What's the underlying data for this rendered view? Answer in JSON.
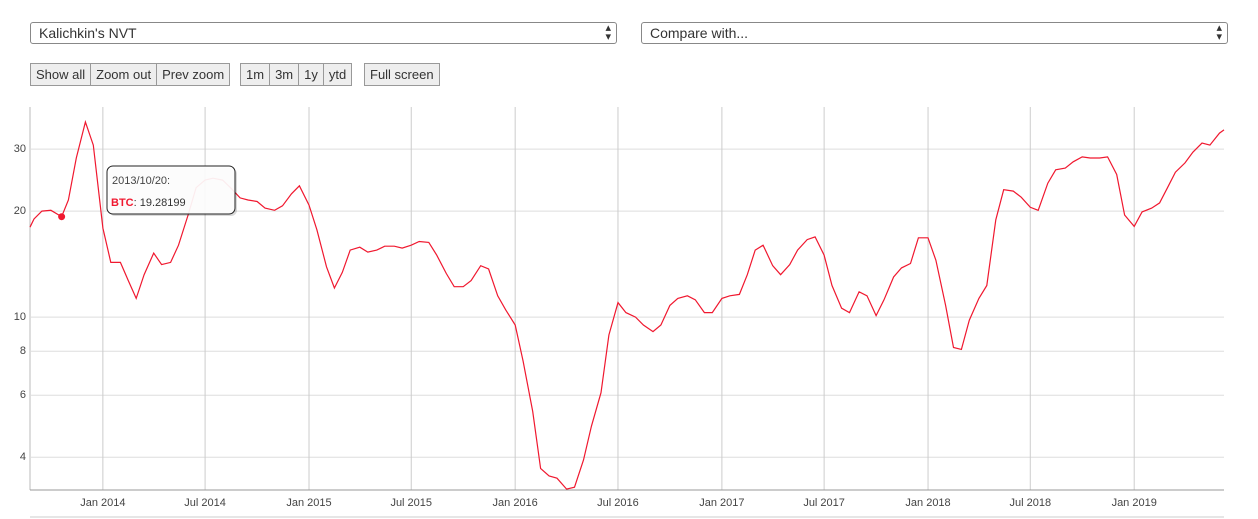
{
  "controls": {
    "metric": "Kalichkin's NVT",
    "compare": "Compare with...",
    "zoom_buttons": [
      "Show all",
      "Zoom out",
      "Prev zoom"
    ],
    "range_buttons": [
      "1m",
      "3m",
      "1y",
      "ytd"
    ],
    "fullscreen": "Full screen"
  },
  "chart_data": {
    "type": "line",
    "yscale": "log",
    "grid": true,
    "xlim": [
      "2013-08-25",
      "2019-06-09"
    ],
    "ylim": [
      3.23,
      39.5
    ],
    "yticks": [
      4,
      6,
      8,
      10,
      20,
      30
    ],
    "xticks": [
      {
        "value": "2014-01-01",
        "label": "Jan 2014"
      },
      {
        "value": "2014-07-01",
        "label": "Jul 2014"
      },
      {
        "value": "2015-01-01",
        "label": "Jan 2015"
      },
      {
        "value": "2015-07-01",
        "label": "Jul 2015"
      },
      {
        "value": "2016-01-01",
        "label": "Jan 2016"
      },
      {
        "value": "2016-07-01",
        "label": "Jul 2016"
      },
      {
        "value": "2017-01-01",
        "label": "Jan 2017"
      },
      {
        "value": "2017-07-01",
        "label": "Jul 2017"
      },
      {
        "value": "2018-01-01",
        "label": "Jan 2018"
      },
      {
        "value": "2018-07-01",
        "label": "Jul 2018"
      },
      {
        "value": "2019-01-01",
        "label": "Jan 2019"
      }
    ],
    "x": [
      "2013-08-25",
      "2013-09-01",
      "2013-09-15",
      "2013-10-01",
      "2013-10-15",
      "2013-10-20",
      "2013-11-01",
      "2013-11-15",
      "2013-12-01",
      "2013-12-15",
      "2014-01-01",
      "2014-01-15",
      "2014-02-01",
      "2014-02-15",
      "2014-03-01",
      "2014-03-15",
      "2014-04-01",
      "2014-04-15",
      "2014-05-01",
      "2014-05-15",
      "2014-06-01",
      "2014-06-15",
      "2014-07-01",
      "2014-07-15",
      "2014-08-01",
      "2014-08-15",
      "2014-09-01",
      "2014-09-15",
      "2014-10-01",
      "2014-10-15",
      "2014-11-01",
      "2014-11-15",
      "2014-12-01",
      "2014-12-15",
      "2015-01-01",
      "2015-01-15",
      "2015-02-01",
      "2015-02-15",
      "2015-03-01",
      "2015-03-15",
      "2015-04-01",
      "2015-04-15",
      "2015-05-01",
      "2015-05-15",
      "2015-06-01",
      "2015-06-15",
      "2015-07-01",
      "2015-07-15",
      "2015-08-01",
      "2015-08-15",
      "2015-09-01",
      "2015-09-15",
      "2015-10-01",
      "2015-10-15",
      "2015-11-01",
      "2015-11-15",
      "2015-12-01",
      "2015-12-15",
      "2016-01-01",
      "2016-01-15",
      "2016-02-01",
      "2016-02-15",
      "2016-03-01",
      "2016-03-15",
      "2016-04-01",
      "2016-04-15",
      "2016-05-01",
      "2016-05-15",
      "2016-06-01",
      "2016-06-15",
      "2016-07-01",
      "2016-07-15",
      "2016-08-01",
      "2016-08-15",
      "2016-09-01",
      "2016-09-15",
      "2016-10-01",
      "2016-10-15",
      "2016-11-01",
      "2016-11-15",
      "2016-12-01",
      "2016-12-15",
      "2017-01-01",
      "2017-01-15",
      "2017-02-01",
      "2017-02-15",
      "2017-03-01",
      "2017-03-15",
      "2017-04-01",
      "2017-04-15",
      "2017-05-01",
      "2017-05-15",
      "2017-06-01",
      "2017-06-15",
      "2017-07-01",
      "2017-07-15",
      "2017-08-01",
      "2017-08-15",
      "2017-09-01",
      "2017-09-15",
      "2017-10-01",
      "2017-10-15",
      "2017-11-01",
      "2017-11-15",
      "2017-12-01",
      "2017-12-15",
      "2018-01-01",
      "2018-01-15",
      "2018-02-01",
      "2018-02-15",
      "2018-03-01",
      "2018-03-15",
      "2018-04-01",
      "2018-04-15",
      "2018-05-01",
      "2018-05-15",
      "2018-06-01",
      "2018-06-15",
      "2018-07-01",
      "2018-07-15",
      "2018-08-01",
      "2018-08-15",
      "2018-09-01",
      "2018-09-15",
      "2018-10-01",
      "2018-10-15",
      "2018-11-01",
      "2018-11-15",
      "2018-12-01",
      "2018-12-15",
      "2019-01-01",
      "2019-01-15",
      "2019-02-01",
      "2019-02-15",
      "2019-03-01",
      "2019-03-15",
      "2019-04-01",
      "2019-04-15",
      "2019-05-01",
      "2019-05-15",
      "2019-06-01",
      "2019-06-09"
    ],
    "series": [
      {
        "name": "BTC",
        "color": "#f0182f",
        "values": [
          18.0,
          19.0,
          20.0,
          20.1,
          19.5,
          19.28199,
          21.5,
          28.3,
          35.8,
          30.8,
          17.9,
          14.3,
          14.3,
          12.7,
          11.3,
          13.2,
          15.2,
          14.1,
          14.3,
          16.0,
          19.5,
          23.3,
          24.5,
          24.8,
          24.5,
          23.3,
          21.8,
          21.5,
          21.3,
          20.4,
          20.1,
          20.7,
          22.4,
          23.6,
          20.8,
          17.7,
          13.9,
          12.1,
          13.4,
          15.5,
          15.8,
          15.3,
          15.5,
          15.9,
          15.9,
          15.7,
          16.0,
          16.4,
          16.3,
          15.0,
          13.3,
          12.2,
          12.2,
          12.7,
          14.0,
          13.7,
          11.5,
          10.5,
          9.5,
          7.5,
          5.4,
          3.72,
          3.54,
          3.49,
          3.25,
          3.29,
          3.93,
          4.9,
          6.1,
          8.9,
          11.0,
          10.3,
          10.0,
          9.5,
          9.1,
          9.5,
          10.8,
          11.3,
          11.5,
          11.2,
          10.3,
          10.3,
          11.3,
          11.5,
          11.6,
          13.2,
          15.5,
          16.0,
          14.0,
          13.2,
          14.1,
          15.5,
          16.6,
          16.9,
          15.0,
          12.3,
          10.6,
          10.3,
          11.8,
          11.5,
          10.1,
          11.2,
          13.0,
          13.8,
          14.2,
          16.8,
          16.8,
          14.5,
          10.8,
          8.2,
          8.1,
          9.8,
          11.3,
          12.3,
          18.9,
          23.0,
          22.8,
          21.9,
          20.5,
          20.1,
          24.0,
          26.2,
          26.5,
          27.6,
          28.5,
          28.3,
          28.3,
          28.5,
          25.4,
          19.5,
          18.1,
          19.9,
          20.4,
          21.1,
          23.3,
          25.8,
          27.4,
          29.4,
          31.2,
          30.8,
          33.3,
          34.0
        ]
      }
    ],
    "tooltip": {
      "date": "2013/10/20:",
      "point": 5
    }
  }
}
